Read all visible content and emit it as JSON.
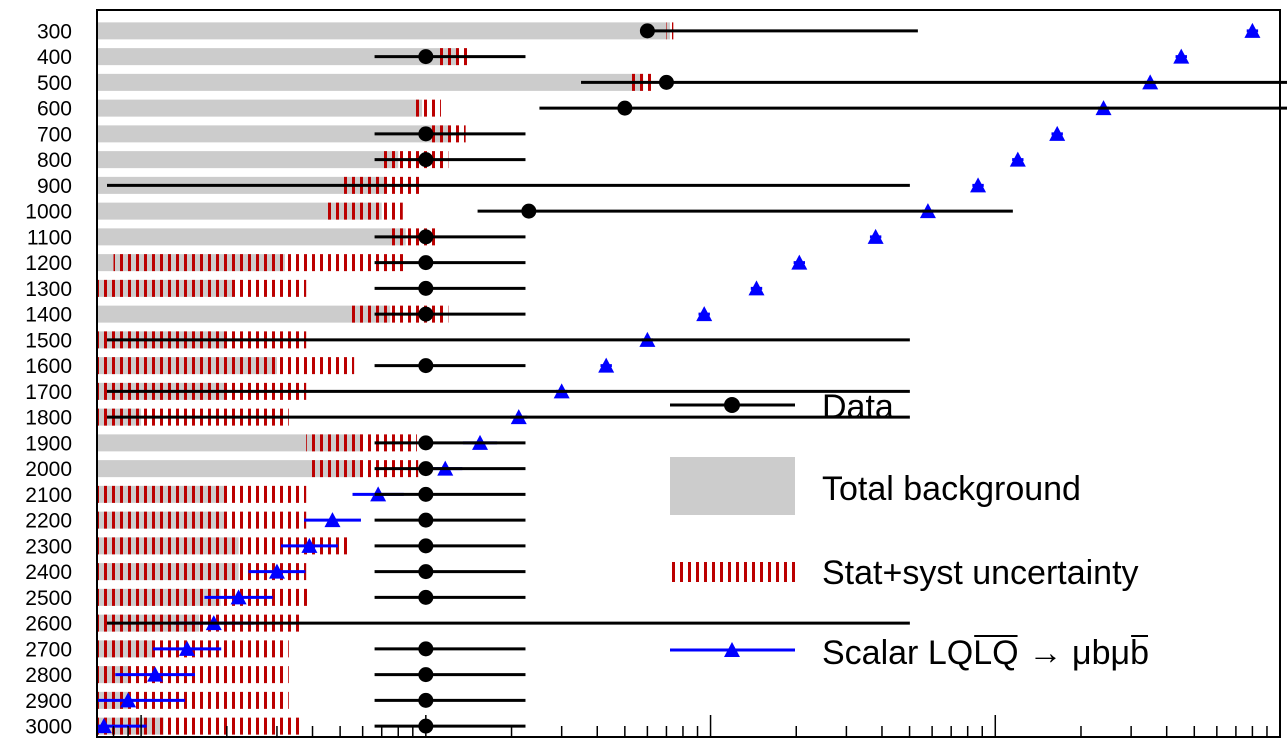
{
  "chart_data": {
    "type": "scatter",
    "title": "",
    "xlabel": "",
    "ylabel": "",
    "x_scale": "log",
    "x_range": [
      0.07,
      1000
    ],
    "categories": [
      "300",
      "400",
      "500",
      "600",
      "700",
      "800",
      "900",
      "1000",
      "1100",
      "1200",
      "1300",
      "1400",
      "1500",
      "1600",
      "1700",
      "1800",
      "1900",
      "2000",
      "2100",
      "2200",
      "2300",
      "2400",
      "2500",
      "2600",
      "2700",
      "2800",
      "2900",
      "3000"
    ],
    "series": [
      {
        "name": "Data",
        "marker": "circle",
        "color": "#000000",
        "values": [
          6.0,
          1.0,
          7.0,
          5.0,
          1.0,
          1.0,
          0,
          2.3,
          1.0,
          1.0,
          1.0,
          1.0,
          0,
          1.0,
          0,
          0,
          1.0,
          1.0,
          1.0,
          1.0,
          1.0,
          1.0,
          1.0,
          0,
          1.0,
          1.0,
          1.0,
          1.0
        ],
        "err_low": [
          0.0,
          0.18,
          0.3,
          0.3,
          0.18,
          0.18,
          0,
          0.18,
          0.18,
          0.18,
          0.18,
          0.18,
          0,
          0.18,
          0,
          0,
          0.18,
          0.18,
          0.18,
          0.18,
          0.18,
          0.18,
          0.18,
          0,
          0.18,
          0.18,
          0.18,
          0.18
        ],
        "err_high": [
          0.95,
          0.35,
          2.3,
          3.0,
          0.35,
          0.35,
          1.7,
          1.7,
          0.35,
          0.35,
          0.35,
          0.35,
          1.7,
          0.35,
          1.7,
          1.7,
          0.35,
          0.35,
          0.35,
          0.35,
          0.35,
          0.35,
          0.35,
          1.7,
          0.35,
          0.35,
          0.35,
          0.35
        ]
      },
      {
        "name": "Total background",
        "color": "#cccccc",
        "values": [
          7.2,
          1.3,
          5.8,
          0.97,
          1.2,
          0.8,
          0.72,
          0.7,
          0.85,
          0.32,
          0.21,
          0.75,
          0.2,
          0.3,
          0.2,
          0.1,
          0.6,
          0.6,
          0.2,
          0.2,
          0.22,
          0.22,
          0.19,
          0.16,
          0.11,
          0.09,
          0.09,
          0.12
        ]
      },
      {
        "name": "Stat+syst uncertainty",
        "color": "#bb0000",
        "low": [
          7.0,
          1.1,
          5.2,
          0.9,
          1.05,
          0.7,
          0.5,
          0.45,
          0.75,
          0.08,
          0.07,
          0.55,
          0.07,
          0.07,
          0.07,
          0.07,
          0.38,
          0.39,
          0.07,
          0.07,
          0.07,
          0.07,
          0.07,
          0.07,
          0.07,
          0.07,
          0.07,
          0.07
        ],
        "high": [
          7.4,
          1.45,
          6.3,
          1.13,
          1.38,
          1.2,
          0.97,
          0.83,
          1.11,
          0.85,
          0.38,
          1.2,
          0.38,
          0.56,
          0.38,
          0.33,
          0.93,
          0.94,
          0.38,
          0.38,
          0.55,
          0.38,
          0.39,
          0.36,
          0.33,
          0.33,
          0.33,
          0.36
        ]
      },
      {
        "name": "Scalar LQLQ → μbμb",
        "marker": "triangle",
        "color": "#0000ff",
        "values": [
          800,
          450,
          350,
          240,
          165,
          120,
          87,
          58,
          38,
          20.5,
          14.5,
          9.5,
          6.0,
          4.3,
          3.0,
          2.12,
          1.55,
          1.17,
          0.68,
          0.47,
          0.39,
          0.3,
          0.22,
          0.18,
          0.145,
          0.112,
          0.09,
          0.074
        ],
        "err": [
          0.02,
          0.02,
          0.02,
          0.02,
          0.02,
          0.02,
          0.02,
          0.02,
          0.02,
          0.02,
          0.02,
          0.02,
          0.02,
          0.02,
          0.02,
          0.03,
          0.06,
          0.06,
          0.09,
          0.1,
          0.1,
          0.1,
          0.12,
          0.14,
          0.12,
          0.14,
          0.2,
          0.15
        ]
      }
    ],
    "legend": {
      "placement": "bottom-right",
      "entries": [
        "Data",
        "Total background",
        "Stat+syst uncertainty",
        "Scalar LQ{LQ} → μbμ{b}"
      ]
    },
    "colors": {
      "background_fill": "#cccccc",
      "uncertainty_hatch": "#bb0000",
      "signal": "#0000ff",
      "data": "#000000"
    }
  },
  "legend_labels": {
    "data": "Data",
    "background": "Total background",
    "uncertainty": "Stat+syst uncertainty",
    "signal_prefix": "Scalar LQ",
    "signal_bar": "LQ",
    "signal_arrow": "→ μbμ",
    "signal_bar2": "b"
  }
}
